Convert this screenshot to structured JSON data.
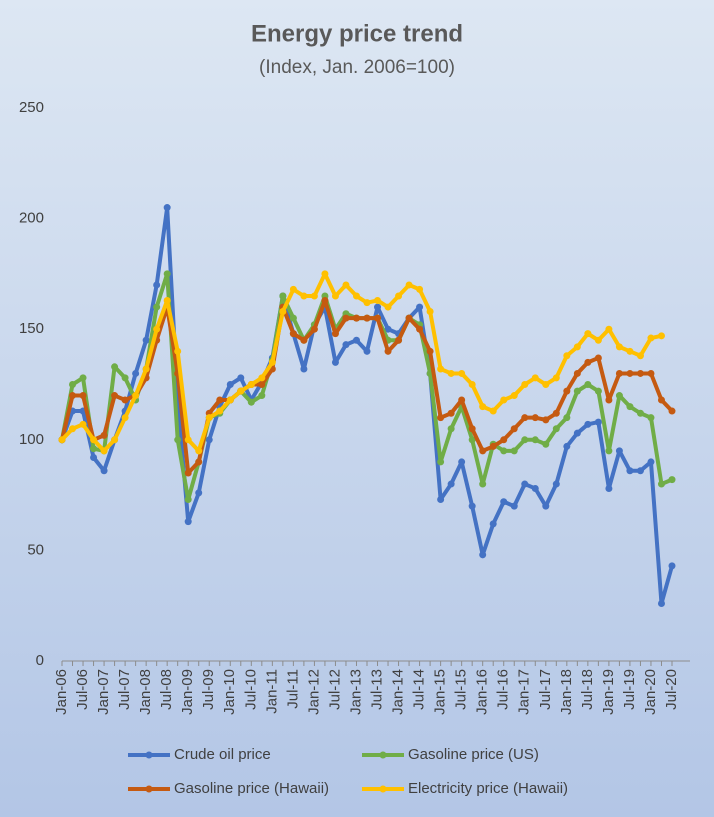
{
  "chart_data": {
    "type": "line",
    "title": "Energy price trend",
    "subtitle": "(Index, Jan. 2006=100)",
    "categories": [
      "Jan-06",
      null,
      "Jul-06",
      null,
      "Jan-07",
      null,
      "Jul-07",
      null,
      "Jan-08",
      null,
      "Jul-08",
      null,
      "Jan-09",
      null,
      "Jul-09",
      null,
      "Jan-10",
      null,
      "Jul-10",
      null,
      "Jan-11",
      null,
      "Jul-11",
      null,
      "Jan-12",
      null,
      "Jul-12",
      null,
      "Jan-13",
      null,
      "Jul-13",
      null,
      "Jan-14",
      null,
      "Jul-14",
      null,
      "Jan-15",
      null,
      "Jul-15",
      null,
      "Jan-16",
      null,
      "Jul-16",
      null,
      "Jan-17",
      null,
      "Jul-17",
      null,
      "Jan-18",
      null,
      "Jul-18",
      null,
      "Jan-19",
      null,
      "Jul-19",
      null,
      "Jan-20",
      null,
      "Jul-20"
    ],
    "series": [
      {
        "name": "Crude oil price",
        "color": "#4472c4",
        "values": [
          100,
          113,
          113,
          92,
          86,
          100,
          113,
          130,
          145,
          170,
          205,
          118,
          63,
          76,
          100,
          115,
          125,
          128,
          118,
          126,
          137,
          165,
          148,
          132,
          152,
          160,
          135,
          143,
          145,
          140,
          160,
          150,
          148,
          155,
          160,
          130,
          73,
          80,
          90,
          70,
          48,
          62,
          72,
          70,
          80,
          78,
          70,
          80,
          97,
          103,
          107,
          108,
          78,
          95,
          86,
          86,
          90,
          26,
          43
        ]
      },
      {
        "name": "Gasoline price (US)",
        "color": "#70ad47",
        "values": [
          100,
          125,
          128,
          96,
          95,
          133,
          128,
          118,
          132,
          160,
          175,
          100,
          73,
          90,
          110,
          112,
          118,
          122,
          117,
          120,
          136,
          165,
          155,
          145,
          152,
          165,
          150,
          157,
          155,
          155,
          155,
          145,
          145,
          155,
          152,
          130,
          90,
          105,
          115,
          100,
          80,
          98,
          95,
          95,
          100,
          100,
          98,
          105,
          110,
          122,
          125,
          122,
          95,
          120,
          115,
          112,
          110,
          80,
          82
        ]
      },
      {
        "name": "Gasoline price (Hawaii)",
        "color": "#c55a11",
        "values": [
          100,
          120,
          120,
          100,
          102,
          120,
          118,
          120,
          128,
          145,
          160,
          130,
          85,
          90,
          112,
          118,
          118,
          122,
          125,
          125,
          132,
          160,
          148,
          145,
          150,
          163,
          148,
          155,
          155,
          155,
          155,
          140,
          145,
          155,
          150,
          140,
          110,
          112,
          118,
          105,
          95,
          97,
          100,
          105,
          110,
          110,
          109,
          112,
          122,
          130,
          135,
          137,
          118,
          130,
          130,
          130,
          130,
          118,
          113
        ]
      },
      {
        "name": "Electricity price (Hawaii)",
        "color": "#ffc000",
        "values": [
          100,
          105,
          107,
          100,
          95,
          100,
          110,
          120,
          132,
          150,
          163,
          140,
          100,
          95,
          110,
          113,
          118,
          122,
          125,
          128,
          135,
          158,
          168,
          165,
          165,
          175,
          165,
          170,
          165,
          162,
          163,
          160,
          165,
          170,
          168,
          158,
          132,
          130,
          130,
          125,
          115,
          113,
          118,
          120,
          125,
          128,
          125,
          128,
          138,
          142,
          148,
          145,
          150,
          142,
          140,
          138,
          146,
          147,
          null
        ]
      }
    ],
    "ylim": [
      0,
      250
    ],
    "yticks": [
      0,
      50,
      100,
      150,
      200,
      250
    ],
    "grid": false,
    "legend": "bottom"
  }
}
